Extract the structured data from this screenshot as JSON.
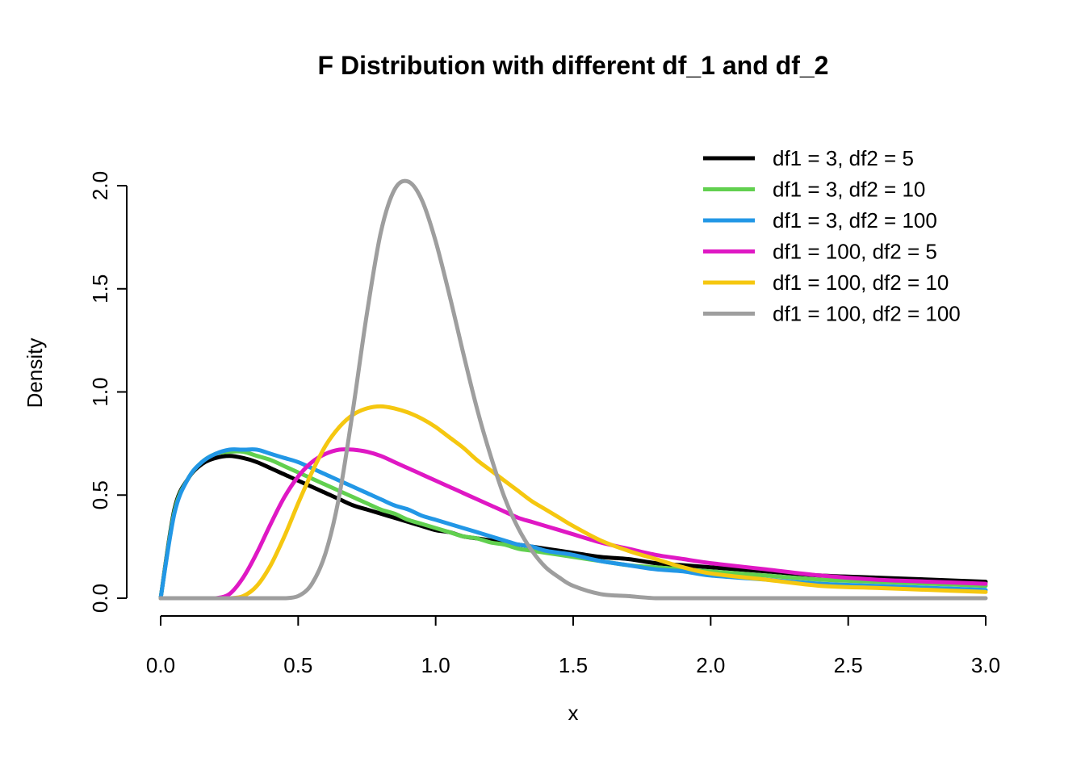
{
  "chart_data": {
    "type": "line",
    "title": "F Distribution with different df_1 and df_2",
    "xlabel": "x",
    "ylabel": "Density",
    "xlim": [
      0,
      3
    ],
    "ylim": [
      0,
      2
    ],
    "x_ticks": [
      "0.0",
      "0.5",
      "1.0",
      "1.5",
      "2.0",
      "2.5",
      "3.0"
    ],
    "y_ticks": [
      "0.0",
      "0.5",
      "1.0",
      "1.5",
      "2.0"
    ],
    "grid": false,
    "legend_position": "top-right",
    "x": [
      0.0,
      0.05,
      0.1,
      0.15,
      0.2,
      0.25,
      0.3,
      0.35,
      0.4,
      0.45,
      0.5,
      0.55,
      0.6,
      0.65,
      0.7,
      0.75,
      0.8,
      0.85,
      0.9,
      0.95,
      1.0,
      1.05,
      1.1,
      1.15,
      1.2,
      1.25,
      1.3,
      1.35,
      1.4,
      1.45,
      1.5,
      1.6,
      1.7,
      1.8,
      1.9,
      2.0,
      2.2,
      2.4,
      2.6,
      2.8,
      3.0
    ],
    "series": [
      {
        "name": "df1 = 3, df2 = 5",
        "color": "#000000",
        "values": [
          0.0,
          0.43,
          0.58,
          0.65,
          0.68,
          0.69,
          0.68,
          0.66,
          0.63,
          0.6,
          0.57,
          0.54,
          0.51,
          0.48,
          0.45,
          0.43,
          0.41,
          0.39,
          0.37,
          0.35,
          0.33,
          0.32,
          0.3,
          0.29,
          0.28,
          0.27,
          0.26,
          0.25,
          0.24,
          0.23,
          0.22,
          0.2,
          0.19,
          0.17,
          0.16,
          0.15,
          0.13,
          0.11,
          0.1,
          0.09,
          0.08
        ]
      },
      {
        "name": "df1 = 3, df2 = 10",
        "color": "#61D04F",
        "values": [
          0.0,
          0.42,
          0.58,
          0.66,
          0.7,
          0.71,
          0.71,
          0.69,
          0.67,
          0.64,
          0.61,
          0.58,
          0.55,
          0.52,
          0.49,
          0.46,
          0.43,
          0.41,
          0.38,
          0.36,
          0.34,
          0.32,
          0.3,
          0.29,
          0.27,
          0.26,
          0.24,
          0.23,
          0.22,
          0.21,
          0.2,
          0.18,
          0.16,
          0.15,
          0.14,
          0.13,
          0.11,
          0.09,
          0.08,
          0.07,
          0.06
        ]
      },
      {
        "name": "df1 = 3, df2 = 100",
        "color": "#2297E6",
        "values": [
          0.0,
          0.41,
          0.58,
          0.66,
          0.7,
          0.72,
          0.72,
          0.72,
          0.7,
          0.68,
          0.66,
          0.63,
          0.6,
          0.57,
          0.54,
          0.51,
          0.48,
          0.45,
          0.43,
          0.4,
          0.38,
          0.36,
          0.34,
          0.32,
          0.3,
          0.28,
          0.26,
          0.25,
          0.23,
          0.22,
          0.21,
          0.18,
          0.16,
          0.14,
          0.13,
          0.11,
          0.09,
          0.07,
          0.06,
          0.05,
          0.04
        ]
      },
      {
        "name": "df1 = 100, df2 = 5",
        "color": "#DF18C4",
        "values": [
          0.0,
          0.0,
          0.0,
          0.0,
          0.0,
          0.02,
          0.1,
          0.22,
          0.36,
          0.49,
          0.59,
          0.66,
          0.7,
          0.72,
          0.72,
          0.71,
          0.69,
          0.66,
          0.63,
          0.6,
          0.57,
          0.54,
          0.51,
          0.48,
          0.45,
          0.42,
          0.39,
          0.37,
          0.35,
          0.33,
          0.31,
          0.27,
          0.24,
          0.21,
          0.19,
          0.17,
          0.14,
          0.11,
          0.09,
          0.08,
          0.07
        ]
      },
      {
        "name": "df1 = 100, df2 = 10",
        "color": "#F5C710",
        "values": [
          0.0,
          0.0,
          0.0,
          0.0,
          0.0,
          0.0,
          0.01,
          0.06,
          0.16,
          0.3,
          0.46,
          0.61,
          0.74,
          0.83,
          0.89,
          0.92,
          0.93,
          0.92,
          0.9,
          0.87,
          0.83,
          0.78,
          0.73,
          0.67,
          0.62,
          0.57,
          0.52,
          0.47,
          0.43,
          0.39,
          0.35,
          0.28,
          0.23,
          0.19,
          0.15,
          0.12,
          0.09,
          0.06,
          0.05,
          0.04,
          0.03
        ]
      },
      {
        "name": "df1 = 100, df2 = 100",
        "color": "#9E9E9E",
        "values": [
          0.0,
          0.0,
          0.0,
          0.0,
          0.0,
          0.0,
          0.0,
          0.0,
          0.0,
          0.0,
          0.01,
          0.07,
          0.22,
          0.5,
          0.92,
          1.38,
          1.77,
          1.98,
          2.02,
          1.93,
          1.73,
          1.47,
          1.19,
          0.92,
          0.69,
          0.49,
          0.34,
          0.23,
          0.15,
          0.1,
          0.06,
          0.02,
          0.01,
          0.0,
          0.0,
          0.0,
          0.0,
          0.0,
          0.0,
          0.0,
          0.0
        ]
      }
    ]
  }
}
